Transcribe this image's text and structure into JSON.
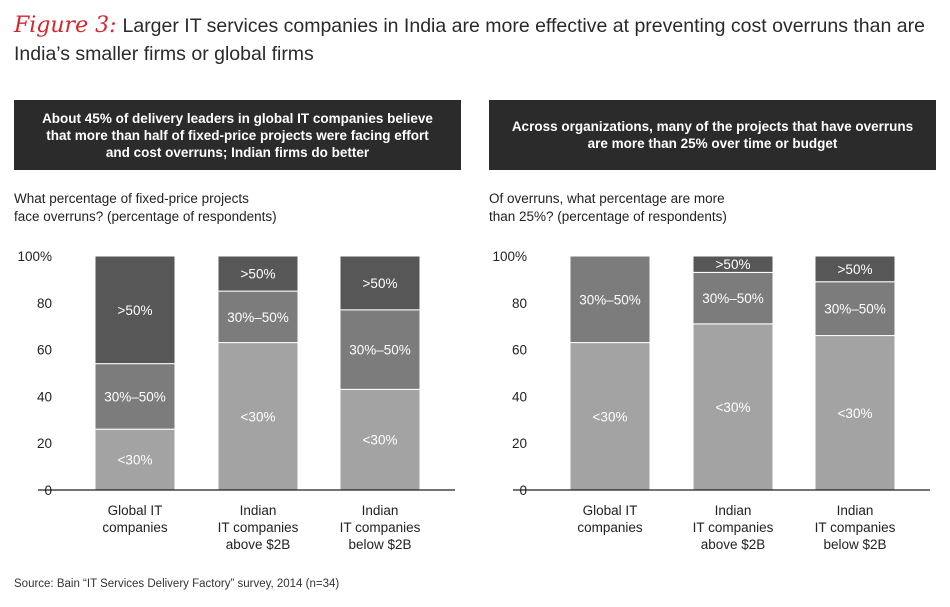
{
  "figure": {
    "label": "Figure 3:",
    "title": "Larger IT services companies in India are more effective at preventing cost overruns than are India’s smaller firms or global firms"
  },
  "left_panel": {
    "header": "About 45% of delivery leaders in global IT companies believe that more than half of fixed-price projects were facing effort and cost overruns; Indian firms do better",
    "question_line1": "What percentage of fixed-price projects",
    "question_line2": "face overruns? (percentage of respondents)"
  },
  "right_panel": {
    "header": "Across organizations, many of the projects that have overruns are more than 25% over time or budget",
    "question_line1": "Of overruns, what percentage are more",
    "question_line2": "than 25%? (percentage of respondents)"
  },
  "source": "Source: Bain “IT Services Delivery Factory” survey, 2014 (n=34)",
  "colors": {
    "low": "#a3a3a3",
    "mid": "#7c7c7c",
    "high": "#575757",
    "axis": "#222222"
  },
  "chart_data": [
    {
      "type": "bar",
      "stacked": true,
      "title": "What percentage of fixed-price projects face overruns? (percentage of respondents)",
      "categories": [
        [
          "Global IT",
          "companies"
        ],
        [
          "Indian",
          "IT companies",
          "above $2B"
        ],
        [
          "Indian",
          "IT companies",
          "below $2B"
        ]
      ],
      "series": [
        {
          "name": "<30%",
          "key": "low",
          "values": [
            26,
            63,
            43
          ]
        },
        {
          "name": "30%–50%",
          "key": "mid",
          "values": [
            28,
            22,
            34
          ]
        },
        {
          "name": ">50%",
          "key": "high",
          "values": [
            46,
            15,
            23
          ]
        }
      ],
      "yticks": [
        "0",
        "20",
        "40",
        "60",
        "80",
        "100%"
      ],
      "ylim": [
        0,
        100
      ]
    },
    {
      "type": "bar",
      "stacked": true,
      "title": "Of overruns, what percentage are more than 25%? (percentage of respondents)",
      "categories": [
        [
          "Global IT",
          "companies"
        ],
        [
          "Indian",
          "IT companies",
          "above $2B"
        ],
        [
          "Indian",
          "IT companies",
          "below $2B"
        ]
      ],
      "series": [
        {
          "name": "<30%",
          "key": "low",
          "values": [
            63,
            71,
            66
          ]
        },
        {
          "name": "30%–50%",
          "key": "mid",
          "values": [
            37,
            22,
            23
          ]
        },
        {
          "name": ">50%",
          "key": "high",
          "values": [
            0,
            7,
            11
          ]
        }
      ],
      "yticks": [
        "0",
        "20",
        "40",
        "60",
        "80",
        "100%"
      ],
      "ylim": [
        0,
        100
      ]
    }
  ]
}
